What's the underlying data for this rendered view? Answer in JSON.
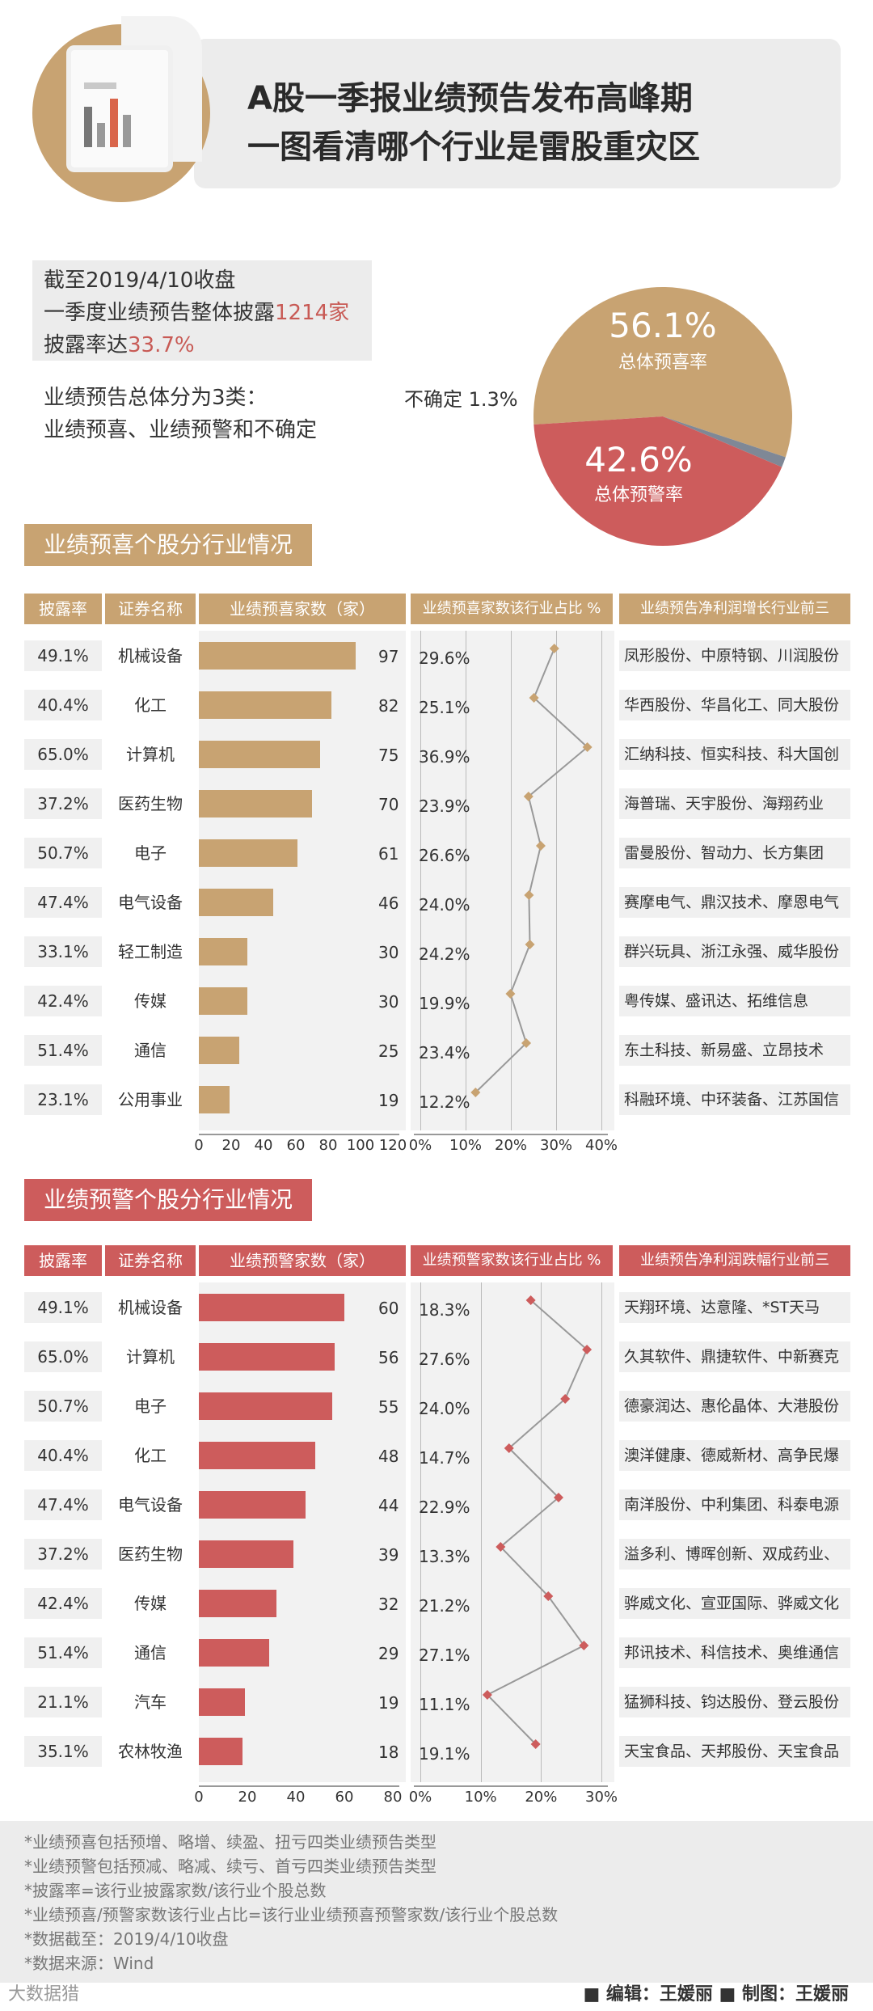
{
  "header": {
    "title_line1": "A股一季报业绩预告发布高峰期",
    "title_line2": "一图看清哪个行业是雷股重灾区"
  },
  "summary": {
    "line1": "截至2019/4/10收盘",
    "line2_prefix": "一季度业绩预告整体披露",
    "line2_value": "1214家",
    "line3_prefix": "披露率达",
    "line3_value": "33.7%",
    "note_line1": "业绩预告总体分为3类：",
    "note_line2": "业绩预喜、业绩预警和不确定"
  },
  "pie": {
    "slices": [
      {
        "label": "总体预喜率",
        "value": 56.1,
        "display": "56.1%",
        "color": "#c8a372"
      },
      {
        "label": "不确定",
        "value": 1.3,
        "display": "1.3%",
        "color": "#7f8896"
      },
      {
        "label": "总体预警率",
        "value": 42.6,
        "display": "42.6%",
        "color": "#cd5c5c"
      }
    ],
    "uncertain_text": "不确定 1.3%"
  },
  "sections": {
    "good_title": "业绩预喜个股分行业情况",
    "bad_title": "业绩预警个股分行业情况"
  },
  "good_headers": {
    "rate": "披露率",
    "name": "证券名称",
    "count": "业绩预喜家数（家）",
    "share": "业绩预喜家数该行业占比 %",
    "top3": "业绩预告净利润增长行业前三"
  },
  "bad_headers": {
    "rate": "披露率",
    "name": "证券名称",
    "count": "业绩预警家数（家）",
    "share": "业绩预警家数该行业占比 %",
    "top3": "业绩预告净利润跌幅行业前三"
  },
  "chart_data": [
    {
      "type": "bar",
      "title": "业绩预喜个股分行业情况",
      "categories": [
        "机械设备",
        "化工",
        "计算机",
        "医药生物",
        "电子",
        "电气设备",
        "轻工制造",
        "传媒",
        "通信",
        "公用事业"
      ],
      "disclosure_rate": [
        "49.1%",
        "40.4%",
        "65.0%",
        "37.2%",
        "50.7%",
        "47.4%",
        "33.1%",
        "42.4%",
        "51.4%",
        "23.1%"
      ],
      "values": [
        97,
        82,
        75,
        70,
        61,
        46,
        30,
        30,
        25,
        19
      ],
      "share_labels": [
        "29.6%",
        "25.1%",
        "36.9%",
        "23.9%",
        "26.6%",
        "24.0%",
        "24.2%",
        "19.9%",
        "23.4%",
        "12.2%"
      ],
      "share": [
        29.6,
        25.1,
        36.9,
        23.9,
        26.6,
        24.0,
        24.2,
        19.9,
        23.4,
        12.2
      ],
      "top3": [
        "凤形股份、中原特钢、川润股份",
        "华西股份、华昌化工、同大股份",
        "汇纳科技、恒实科技、科大国创",
        "海普瑞、天宇股份、海翔药业",
        "雷曼股份、智动力、长方集团",
        "赛摩电气、鼎汉技术、摩恩电气",
        "群兴玩具、浙江永强、威华股份",
        "粤传媒、盛讯达、拓维信息",
        "东土科技、新易盛、立昂技术",
        "科融环境、中环装备、江苏国信"
      ],
      "xlim": [
        0,
        120
      ],
      "xticks": [
        "0",
        "20",
        "40",
        "60",
        "80",
        "100",
        "120"
      ],
      "share_lim": [
        0,
        40
      ],
      "share_ticks": [
        "0%",
        "10%",
        "20%",
        "30%",
        "40%"
      ],
      "color": "#c8a372"
    },
    {
      "type": "bar",
      "title": "业绩预警个股分行业情况",
      "categories": [
        "机械设备",
        "计算机",
        "电子",
        "化工",
        "电气设备",
        "医药生物",
        "传媒",
        "通信",
        "汽车",
        "农林牧渔"
      ],
      "disclosure_rate": [
        "49.1%",
        "65.0%",
        "50.7%",
        "40.4%",
        "47.4%",
        "37.2%",
        "42.4%",
        "51.4%",
        "21.1%",
        "35.1%"
      ],
      "values": [
        60,
        56,
        55,
        48,
        44,
        39,
        32,
        29,
        19,
        18
      ],
      "share_labels": [
        "18.3%",
        "27.6%",
        "24.0%",
        "14.7%",
        "22.9%",
        "13.3%",
        "21.2%",
        "27.1%",
        "11.1%",
        "19.1%"
      ],
      "share": [
        18.3,
        27.6,
        24.0,
        14.7,
        22.9,
        13.3,
        21.2,
        27.1,
        11.1,
        19.1
      ],
      "top3": [
        "天翔环境、达意隆、*ST天马",
        "久其软件、鼎捷软件、中新赛克",
        "德豪润达、惠伦晶体、大港股份",
        "澳洋健康、德威新材、高争民爆",
        "南洋股份、中利集团、科泰电源",
        "溢多利、博晖创新、双成药业、",
        "骅威文化、宣亚国际、骅威文化",
        "邦讯技术、科信技术、奥维通信",
        "猛狮科技、钧达股份、登云股份",
        "天宝食品、天邦股份、天宝食品"
      ],
      "xlim": [
        0,
        80
      ],
      "xticks": [
        "0",
        "20",
        "40",
        "60",
        "80"
      ],
      "share_lim": [
        0,
        30
      ],
      "share_ticks": [
        "0%",
        "10%",
        "20%",
        "30%"
      ],
      "color": "#cd5c5c"
    }
  ],
  "footer": {
    "notes": [
      "*业绩预喜包括预增、略增、续盈、扭亏四类业绩预告类型",
      "*业绩预警包括预减、略减、续亏、首亏四类业绩预告类型",
      "*披露率=该行业披露家数/该行业个股总数",
      "*业绩预喜/预警家数该行业占比=该行业业绩预喜预警家数/该行业个股总数",
      "*数据截至：2019/4/10收盘",
      "*数据来源：Wind"
    ],
    "credit": "■ 编辑：王媛丽  ■ 制图：王媛丽",
    "brand": "大数据猎"
  }
}
